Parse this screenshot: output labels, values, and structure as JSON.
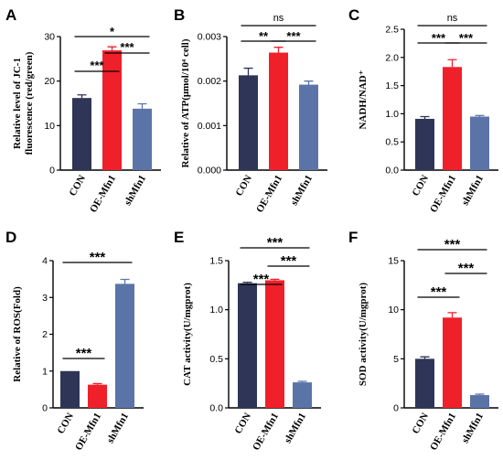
{
  "chart_data": [
    {
      "panel": "A",
      "type": "bar",
      "categories": [
        "CON",
        "OE-Mfn1",
        "shMfn1"
      ],
      "values": [
        16.2,
        26.9,
        13.8
      ],
      "errors": [
        0.7,
        0.8,
        1.1
      ],
      "ylabel": [
        "Relative level of JC-1",
        "fluorescence (red/green)"
      ],
      "ylim": [
        0,
        30
      ],
      "yticks": [
        "0",
        "10",
        "20",
        "30"
      ],
      "significance": [
        {
          "from": 0,
          "to": 1,
          "label": "***"
        },
        {
          "from": 1,
          "to": 2,
          "label": "***"
        },
        {
          "from": 0,
          "to": 2,
          "label": "*"
        }
      ]
    },
    {
      "panel": "B",
      "type": "bar",
      "categories": [
        "CON",
        "OE-Mfn1",
        "shMfn1"
      ],
      "values": [
        0.00213,
        0.00264,
        0.00192
      ],
      "errors": [
        0.00016,
        0.00012,
        8e-05
      ],
      "ylabel": [
        "Relative of ATP(μmol/10⁴ cell)"
      ],
      "ylim": [
        0,
        0.003
      ],
      "yticks": [
        "0.000",
        "0.001",
        "0.002",
        "0.003"
      ],
      "significance": [
        {
          "from": 0,
          "to": 1,
          "label": "**"
        },
        {
          "from": 1,
          "to": 2,
          "label": "***"
        },
        {
          "from": 0,
          "to": 2,
          "label": "ns"
        }
      ]
    },
    {
      "panel": "C",
      "type": "bar",
      "categories": [
        "CON",
        "OE-Mfn1",
        "shMfn1"
      ],
      "values": [
        0.91,
        1.83,
        0.95
      ],
      "errors": [
        0.04,
        0.13,
        0.02
      ],
      "ylabel": [
        "NADH/NAD⁺"
      ],
      "ylim": [
        0,
        2.5
      ],
      "yticks": [
        "0.0",
        "0.5",
        "1.0",
        "1.5",
        "2.0",
        "2.5"
      ],
      "significance": [
        {
          "from": 0,
          "to": 1,
          "label": "***"
        },
        {
          "from": 1,
          "to": 2,
          "label": "***"
        },
        {
          "from": 0,
          "to": 2,
          "label": "ns"
        }
      ]
    },
    {
      "panel": "D",
      "type": "bar",
      "categories": [
        "CON",
        "OE-Mfn1",
        "shMfn1"
      ],
      "values": [
        1.0,
        0.63,
        3.37
      ],
      "errors": [
        0.0,
        0.03,
        0.12
      ],
      "ylabel": [
        "Relative of ROS(Fold)"
      ],
      "ylim": [
        0,
        4
      ],
      "yticks": [
        "0",
        "1",
        "2",
        "3",
        "4"
      ],
      "significance": [
        {
          "from": 0,
          "to": 1,
          "label": "***"
        },
        {
          "from": 0,
          "to": 2,
          "label": "***"
        }
      ]
    },
    {
      "panel": "E",
      "type": "bar",
      "categories": [
        "CON",
        "OE-Mfn1",
        "shMfn1"
      ],
      "values": [
        1.27,
        1.3,
        0.26
      ],
      "errors": [
        0.01,
        0.01,
        0.01
      ],
      "ylabel": [
        "CAT activity(U/mgprot)"
      ],
      "ylim": [
        0,
        1.5
      ],
      "yticks": [
        "0.0",
        "0.5",
        "1.0",
        "1.5"
      ],
      "significance": [
        {
          "from": 0,
          "to": 1,
          "label": "***"
        },
        {
          "from": 1,
          "to": 2,
          "label": "***"
        },
        {
          "from": 0,
          "to": 2,
          "label": "***"
        }
      ]
    },
    {
      "panel": "F",
      "type": "bar",
      "categories": [
        "CON",
        "OE-Mfn1",
        "shMfn1"
      ],
      "values": [
        5.0,
        9.2,
        1.3
      ],
      "errors": [
        0.2,
        0.5,
        0.1
      ],
      "ylabel": [
        "SOD activity(U/mgprot)"
      ],
      "ylim": [
        0,
        15
      ],
      "yticks": [
        "0",
        "5",
        "10",
        "15"
      ],
      "significance": [
        {
          "from": 0,
          "to": 1,
          "label": "***"
        },
        {
          "from": 1,
          "to": 2,
          "label": "***"
        },
        {
          "from": 0,
          "to": 2,
          "label": "***"
        }
      ]
    }
  ],
  "colors": {
    "con": "#2f3556",
    "oe": "#f0202a",
    "sh": "#5b74a8",
    "con_err": "#2f3556",
    "oe_err": "#f0202a",
    "sh_err": "#5b74a8"
  }
}
